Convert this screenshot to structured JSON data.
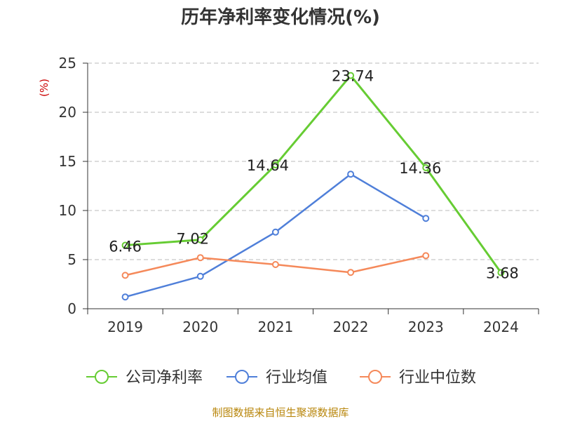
{
  "title": "历年净利率变化情况(%)",
  "source": "制图数据来自恒生聚源数据库",
  "colors": {
    "company": "#66cc33",
    "industry_avg": "#4f7fd9",
    "industry_median": "#f5895a",
    "unit_label": "#cc0000",
    "source": "#b8860b",
    "grid": "#bbbbbb",
    "axis": "#333333"
  },
  "chart_data": {
    "type": "line",
    "title": "历年净利率变化情况(%)",
    "unit_label": "(%)",
    "x": [
      "2019",
      "2020",
      "2021",
      "2022",
      "2023",
      "2024"
    ],
    "ylim": [
      0,
      25
    ],
    "yticks": [
      0,
      5,
      10,
      15,
      20,
      25
    ],
    "grid": true,
    "legend_position": "bottom",
    "series": [
      {
        "name": "公司净利率",
        "values": [
          6.46,
          7.02,
          14.64,
          23.74,
          14.36,
          3.68
        ],
        "labels": [
          "6.46",
          "7.02",
          "14.64",
          "23.74",
          "14.36",
          "3.68"
        ],
        "color": "#66cc33"
      },
      {
        "name": "行业均值",
        "values": [
          1.2,
          3.3,
          7.8,
          13.7,
          9.2,
          null
        ],
        "color": "#4f7fd9"
      },
      {
        "name": "行业中位数",
        "values": [
          3.4,
          5.2,
          4.5,
          3.7,
          5.4,
          null
        ],
        "color": "#f5895a"
      }
    ]
  }
}
